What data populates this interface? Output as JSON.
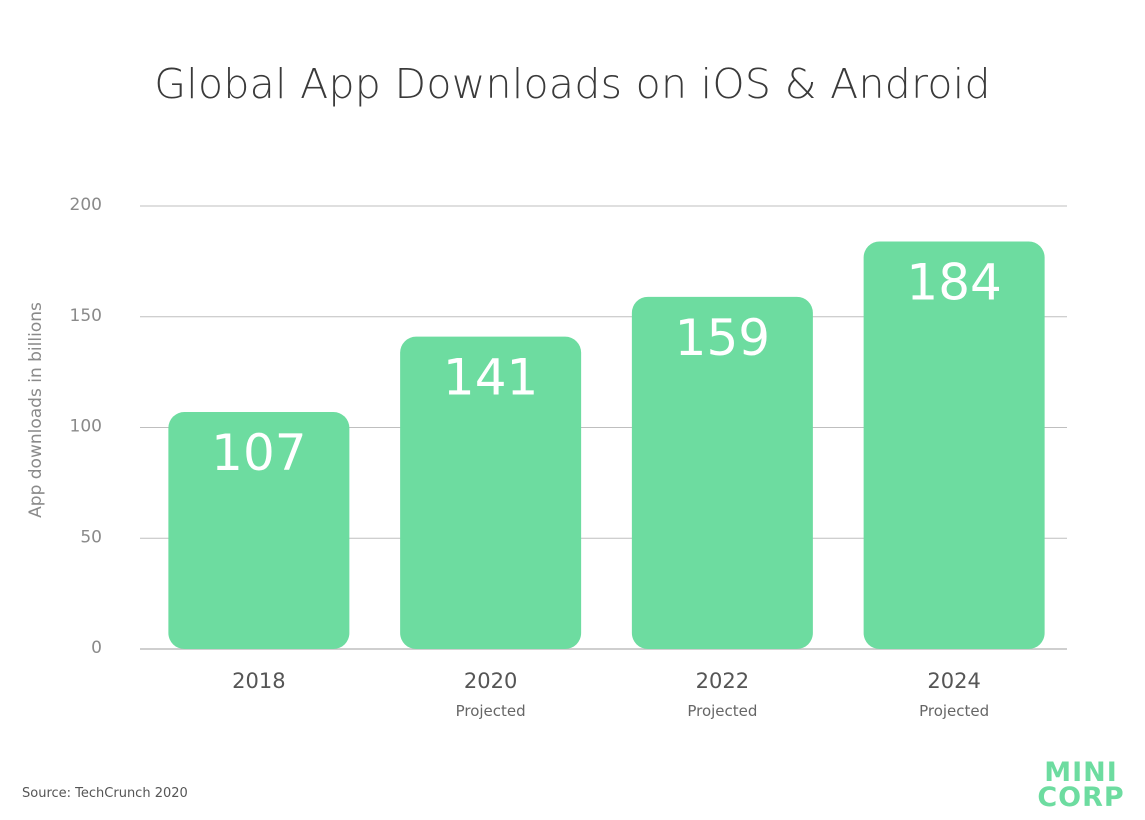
{
  "chart_data": {
    "type": "bar",
    "title": "Global App Downloads on iOS & Android",
    "ylabel": "App downloads in billions",
    "xlabel": "",
    "categories": [
      "2018",
      "2020",
      "2022",
      "2024"
    ],
    "category_notes": [
      "",
      "Projected",
      "Projected",
      "Projected"
    ],
    "values": [
      107,
      141,
      159,
      184
    ],
    "value_labels": [
      "107",
      "141",
      "159",
      "184"
    ],
    "yticks": [
      0,
      50,
      100,
      150,
      200
    ],
    "ytick_labels": [
      "0",
      "50",
      "100",
      "150",
      "200"
    ],
    "ylim": [
      0,
      200
    ],
    "grid": true,
    "bar_color": "#6ddca0",
    "grid_color": "#bfbfbf"
  },
  "footer": {
    "source": "Source: TechCrunch 2020",
    "logo_line1": "MINI",
    "logo_line2": "CORP"
  }
}
